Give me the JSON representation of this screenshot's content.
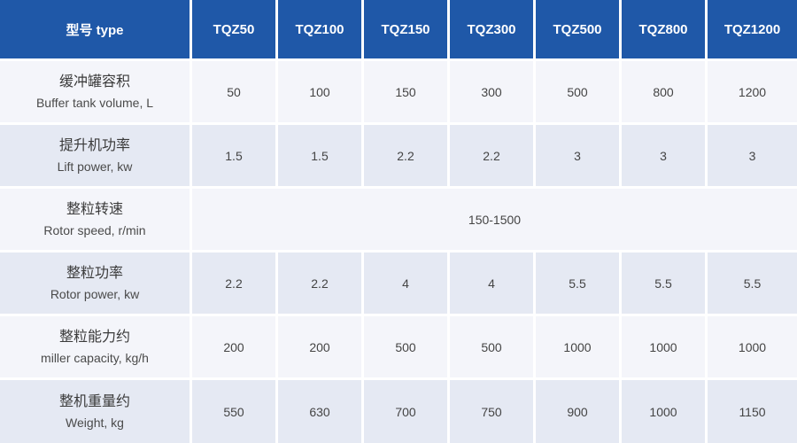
{
  "table": {
    "header": {
      "type_label": "型号 type",
      "models": [
        "TQZ50",
        "TQZ100",
        "TQZ150",
        "TQZ300",
        "TQZ500",
        "TQZ800",
        "TQZ1200"
      ]
    },
    "rows": [
      {
        "label_zh": "缓冲罐容积",
        "label_en": "Buffer tank volume, L",
        "values": [
          "50",
          "100",
          "150",
          "300",
          "500",
          "800",
          "1200"
        ]
      },
      {
        "label_zh": "提升机功率",
        "label_en": "Lift power, kw",
        "values": [
          "1.5",
          "1.5",
          "2.2",
          "2.2",
          "3",
          "3",
          "3"
        ]
      },
      {
        "label_zh": "整粒转速",
        "label_en": "Rotor speed, r/min",
        "merged_value": "150-1500"
      },
      {
        "label_zh": "整粒功率",
        "label_en": "Rotor power, kw",
        "values": [
          "2.2",
          "2.2",
          "4",
          "4",
          "5.5",
          "5.5",
          "5.5"
        ]
      },
      {
        "label_zh": "整粒能力约",
        "label_en": "miller capacity, kg/h",
        "values": [
          "200",
          "200",
          "500",
          "500",
          "1000",
          "1000",
          "1000"
        ]
      },
      {
        "label_zh": "整机重量约",
        "label_en": "Weight, kg",
        "values": [
          "550",
          "630",
          "700",
          "750",
          "900",
          "1000",
          "1150"
        ]
      }
    ]
  },
  "colors": {
    "header_bg": "#1f58a8",
    "row_light": "#f4f5fa",
    "row_dark": "#e5e9f3"
  }
}
